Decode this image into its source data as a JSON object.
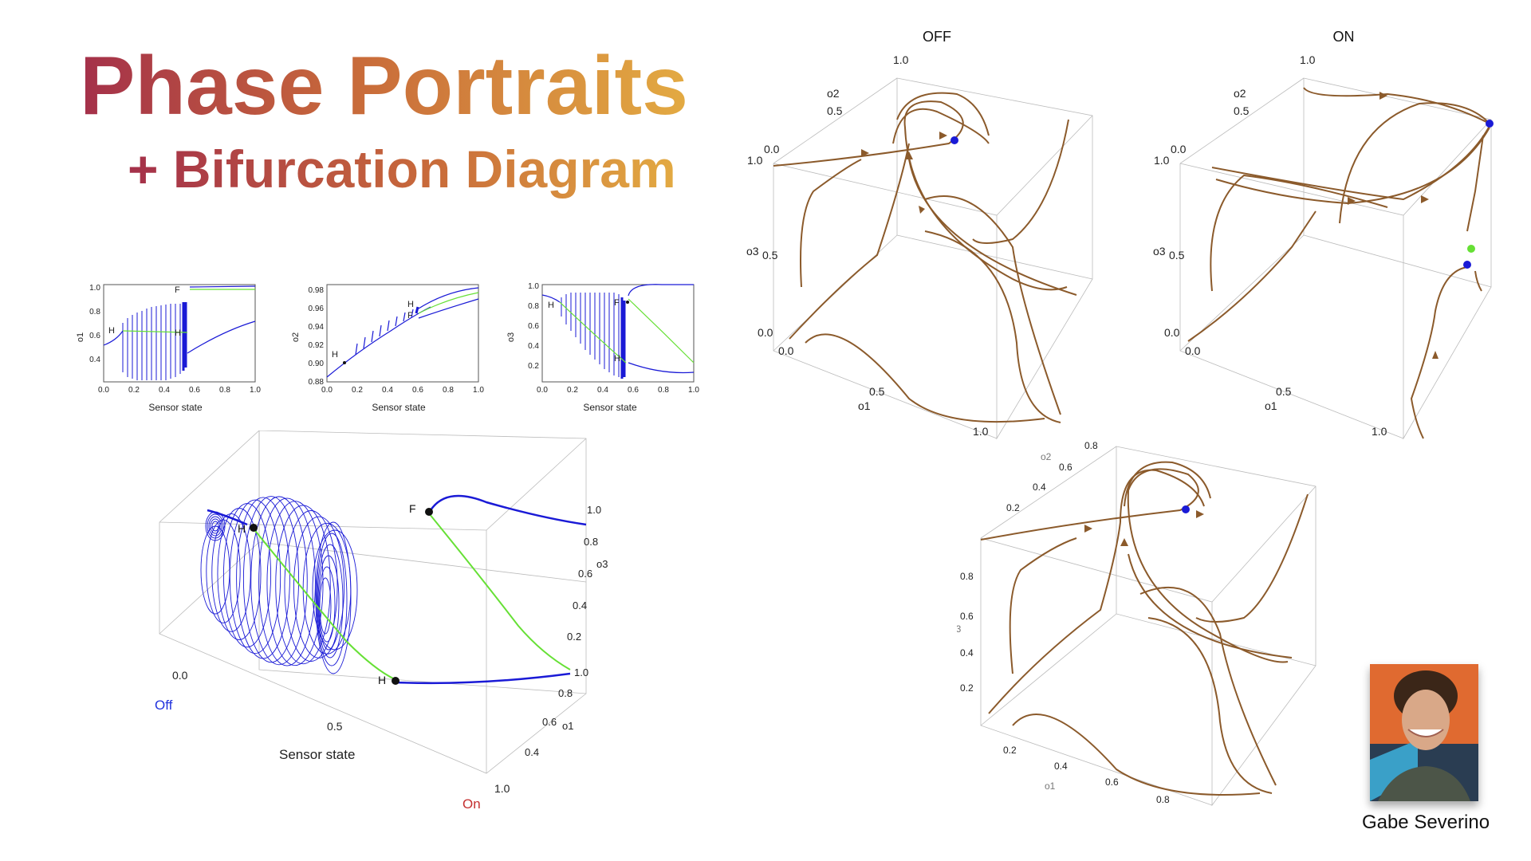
{
  "slide": {
    "title": "Phase Portraits",
    "subtitle": "+ Bifurcation Diagram",
    "author": "Gabe Severino"
  },
  "colors": {
    "title_start": "#a4304a",
    "title_end": "#e3aa42",
    "stable_branch": "#1a1ad6",
    "unstable_branch": "#66e035",
    "trajectory": "#8b5a2b",
    "off_label": "#2233dd",
    "on_label": "#c43030"
  },
  "small_plots": [
    {
      "ylabel": "o1",
      "xlabel": "Sensor state",
      "xticks": [
        "0.0",
        "0.2",
        "0.4",
        "0.6",
        "0.8",
        "1.0"
      ],
      "yticks": [
        "1.0",
        "0.8",
        "0.6",
        "0.4"
      ],
      "marks": [
        "H",
        "H",
        "F"
      ]
    },
    {
      "ylabel": "o2",
      "xlabel": "Sensor state",
      "xticks": [
        "0.0",
        "0.2",
        "0.4",
        "0.6",
        "0.8",
        "1.0"
      ],
      "yticks": [
        "0.98",
        "0.96",
        "0.94",
        "0.92",
        "0.90",
        "0.88"
      ],
      "marks": [
        "H",
        "H",
        "F"
      ]
    },
    {
      "ylabel": "o3",
      "xlabel": "Sensor state",
      "xticks": [
        "0.0",
        "0.2",
        "0.4",
        "0.6",
        "0.8",
        "1.0"
      ],
      "yticks": [
        "1.0",
        "0.8",
        "0.6",
        "0.4",
        "0.2"
      ],
      "marks": [
        "H",
        "F",
        "H"
      ]
    }
  ],
  "bifurcation_3d": {
    "xlabel": "Sensor state",
    "off_label": "Off",
    "on_label": "On",
    "o3_label": "o3",
    "o1_label": "o1",
    "sensor_ticks": [
      "0.0",
      "0.5",
      "1.0"
    ],
    "o3_ticks": [
      "1.0",
      "0.8",
      "0.6",
      "0.4",
      "0.2"
    ],
    "o1_ticks": [
      "1.0",
      "0.8",
      "0.6",
      "0.4"
    ],
    "marks": [
      "H",
      "H",
      "F"
    ]
  },
  "phase_off": {
    "title": "OFF",
    "o2_label": "o2",
    "o3_label": "o3",
    "o1_label": "o1",
    "o2_ticks": [
      "1.0",
      "0.5",
      "0.0"
    ],
    "o3_ticks": [
      "1.0",
      "0.5",
      "0.0"
    ],
    "o1_ticks": [
      "0.0",
      "0.5",
      "1.0"
    ]
  },
  "phase_on": {
    "title": "ON",
    "o2_label": "o2",
    "o3_label": "o3",
    "o1_label": "o1",
    "o2_ticks": [
      "1.0",
      "0.5",
      "0.0"
    ],
    "o3_ticks": [
      "1.0",
      "0.5",
      "0.0"
    ],
    "o1_ticks": [
      "0.0",
      "0.5",
      "1.0"
    ]
  },
  "phase_bottom": {
    "o2_label": "o2",
    "o3_label": "o3",
    "o1_label": "o1",
    "o2_ticks": [
      "0.8",
      "0.6",
      "0.4",
      "0.2"
    ],
    "o3_ticks": [
      "0.8",
      "0.6",
      "0.4",
      "0.2"
    ],
    "o1_ticks": [
      "0.2",
      "0.4",
      "0.6",
      "0.8"
    ]
  }
}
